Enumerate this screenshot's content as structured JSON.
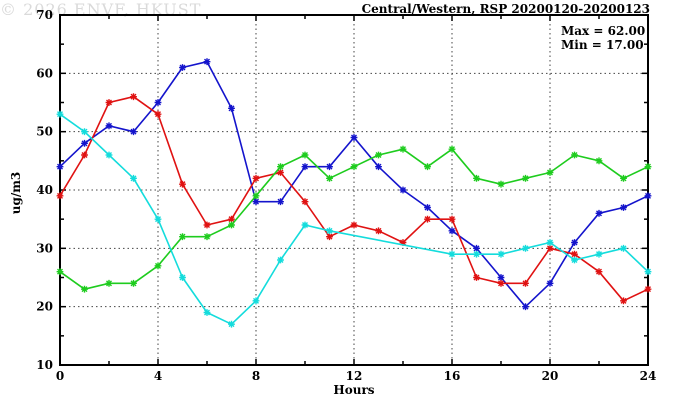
{
  "title": "Central/Western, RSP 20200120-20200123",
  "stats": {
    "max_label": "Max = 62.00",
    "min_label": "Min = 17.00"
  },
  "watermark": "© 2026 ENVF, HKUST",
  "axes": {
    "xlabel": "Hours",
    "ylabel": "ug/m3"
  },
  "colors": {
    "blue": "#1414cc",
    "red": "#e01212",
    "green": "#1ecc1e",
    "cyan": "#14dcdc",
    "axis": "#000000",
    "grid": "#444444",
    "watermark_gray": "#dadada"
  },
  "chart_data": {
    "type": "line",
    "title": "Central/Western, RSP 20200120-20200123",
    "xlabel": "Hours",
    "ylabel": "ug/m3",
    "xlim": [
      0,
      24
    ],
    "ylim": [
      10,
      70
    ],
    "x_major_ticks": [
      0,
      4,
      8,
      12,
      16,
      20,
      24
    ],
    "x_minor_step": 2,
    "y_major_ticks": [
      10,
      20,
      30,
      40,
      50,
      60,
      70
    ],
    "y_minor_step": 5,
    "grid": "dotted black gridlines at x = 4,8,12,16,20 and y = 20,30,40,50,60",
    "legend_position": "none",
    "marker": "asterisk",
    "annotations": [
      "Max = 62.00",
      "Min = 17.00"
    ],
    "x": [
      0,
      1,
      2,
      3,
      4,
      5,
      6,
      7,
      8,
      9,
      10,
      11,
      12,
      13,
      14,
      15,
      16,
      17,
      18,
      19,
      20,
      21,
      22,
      23,
      24
    ],
    "series": [
      {
        "name": "series-blue",
        "color": "#1414cc",
        "values": [
          44,
          48,
          51,
          50,
          55,
          61,
          62,
          54,
          38,
          38,
          44,
          44,
          49,
          44,
          40,
          37,
          33,
          30,
          25,
          20,
          24,
          31,
          36,
          37,
          39
        ]
      },
      {
        "name": "series-red",
        "color": "#e01212",
        "values": [
          39,
          46,
          55,
          56,
          53,
          41,
          34,
          35,
          42,
          43,
          38,
          32,
          34,
          33,
          31,
          35,
          35,
          25,
          24,
          24,
          30,
          29,
          26,
          21,
          23
        ]
      },
      {
        "name": "series-green",
        "color": "#1ecc1e",
        "values": [
          26,
          23,
          24,
          24,
          27,
          32,
          32,
          34,
          39,
          44,
          46,
          42,
          44,
          46,
          47,
          44,
          47,
          42,
          41,
          42,
          43,
          46,
          45,
          42,
          44
        ]
      },
      {
        "name": "series-cyan",
        "color": "#14dcdc",
        "values": [
          53,
          50,
          46,
          42,
          35,
          25,
          19,
          17,
          21,
          28,
          34,
          33,
          null,
          null,
          null,
          null,
          29,
          29,
          29,
          30,
          31,
          28,
          29,
          30,
          26
        ]
      }
    ]
  }
}
